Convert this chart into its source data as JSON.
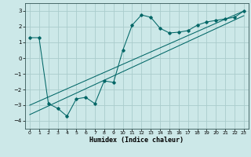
{
  "xlabel": "Humidex (Indice chaleur)",
  "ylabel": "",
  "bg_color": "#cce8e8",
  "grid_color": "#aacccc",
  "line_color": "#006666",
  "xlim": [
    -0.5,
    23.5
  ],
  "ylim": [
    -4.5,
    3.5
  ],
  "xticks": [
    0,
    1,
    2,
    3,
    4,
    5,
    6,
    7,
    8,
    9,
    10,
    11,
    12,
    13,
    14,
    15,
    16,
    17,
    18,
    19,
    20,
    21,
    22,
    23
  ],
  "yticks": [
    -4,
    -3,
    -2,
    -1,
    0,
    1,
    2,
    3
  ],
  "curve_x": [
    0,
    1,
    2,
    3,
    4,
    5,
    6,
    7,
    8,
    9,
    10,
    11,
    12,
    13,
    14,
    15,
    16,
    17,
    18,
    19,
    20,
    21,
    22,
    23
  ],
  "curve_y": [
    1.3,
    1.3,
    -2.9,
    -3.2,
    -3.7,
    -2.6,
    -2.5,
    -2.9,
    -1.45,
    -1.55,
    0.5,
    2.1,
    2.75,
    2.6,
    1.9,
    1.6,
    1.65,
    1.75,
    2.1,
    2.3,
    2.4,
    2.5,
    2.6,
    3.0
  ],
  "line1_x": [
    0,
    23
  ],
  "line1_y": [
    -3.0,
    3.0
  ],
  "line2_x": [
    0,
    23
  ],
  "line2_y": [
    -3.6,
    2.7
  ],
  "tick_fontsize": 4.5,
  "xlabel_fontsize": 6.0
}
